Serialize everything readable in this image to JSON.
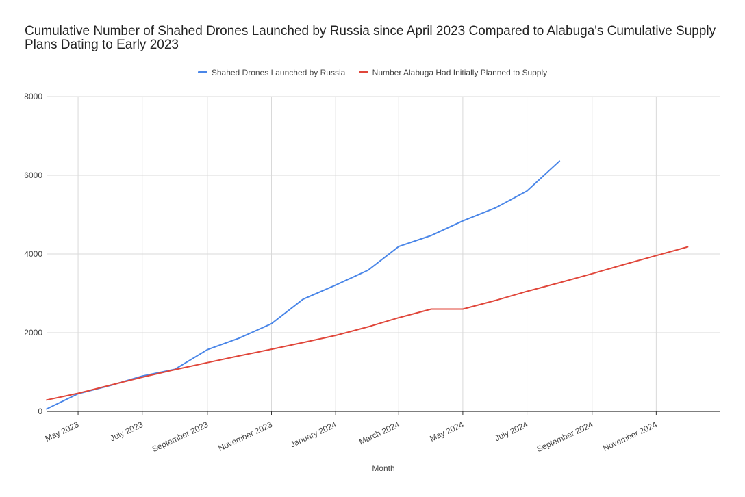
{
  "chart_data": {
    "type": "line",
    "title": "Cumulative Number of Shahed Drones Launched by Russia since April 2023 Compared to Alabuga's Cumulative Supply Plans Dating to Early 2023",
    "xlabel": "Month",
    "ylabel": "",
    "ylim": [
      0,
      8000
    ],
    "yticks": [
      0,
      2000,
      4000,
      6000,
      8000
    ],
    "xlim": [
      "2023-04-01",
      "2025-01-01"
    ],
    "xticks": [
      {
        "date": "2023-05-01",
        "label": "May 2023"
      },
      {
        "date": "2023-07-01",
        "label": "July 2023"
      },
      {
        "date": "2023-09-01",
        "label": "September 2023"
      },
      {
        "date": "2023-11-01",
        "label": "November 2023"
      },
      {
        "date": "2024-01-01",
        "label": "January 2024"
      },
      {
        "date": "2024-03-01",
        "label": "March 2024"
      },
      {
        "date": "2024-05-01",
        "label": "May 2024"
      },
      {
        "date": "2024-07-01",
        "label": "July 2024"
      },
      {
        "date": "2024-09-01",
        "label": "September 2024"
      },
      {
        "date": "2024-11-01",
        "label": "November 2024"
      }
    ],
    "grid": true,
    "legend_position": "top",
    "series": [
      {
        "name": "Shahed Drones Launched by Russia",
        "color": "#4a86e8",
        "points": [
          {
            "x": "2023-04-01",
            "y": 60
          },
          {
            "x": "2023-05-01",
            "y": 450
          },
          {
            "x": "2023-06-01",
            "y": 660
          },
          {
            "x": "2023-07-01",
            "y": 900
          },
          {
            "x": "2023-08-01",
            "y": 1070
          },
          {
            "x": "2023-09-01",
            "y": 1570
          },
          {
            "x": "2023-10-01",
            "y": 1860
          },
          {
            "x": "2023-11-01",
            "y": 2230
          },
          {
            "x": "2023-12-01",
            "y": 2850
          },
          {
            "x": "2024-01-01",
            "y": 3210
          },
          {
            "x": "2024-02-01",
            "y": 3590
          },
          {
            "x": "2024-03-01",
            "y": 4190
          },
          {
            "x": "2024-04-01",
            "y": 4470
          },
          {
            "x": "2024-05-01",
            "y": 4840
          },
          {
            "x": "2024-06-01",
            "y": 5170
          },
          {
            "x": "2024-07-01",
            "y": 5600
          },
          {
            "x": "2024-08-01",
            "y": 6360
          }
        ]
      },
      {
        "name": "Number Alabuga Had Initially Planned to Supply",
        "color": "#e0463a",
        "points": [
          {
            "x": "2023-04-01",
            "y": 290
          },
          {
            "x": "2023-05-01",
            "y": 460
          },
          {
            "x": "2023-06-01",
            "y": 670
          },
          {
            "x": "2023-07-01",
            "y": 870
          },
          {
            "x": "2023-08-01",
            "y": 1060
          },
          {
            "x": "2023-09-01",
            "y": 1240
          },
          {
            "x": "2023-10-01",
            "y": 1410
          },
          {
            "x": "2023-11-01",
            "y": 1580
          },
          {
            "x": "2023-12-01",
            "y": 1750
          },
          {
            "x": "2024-01-01",
            "y": 1930
          },
          {
            "x": "2024-02-01",
            "y": 2150
          },
          {
            "x": "2024-03-01",
            "y": 2380
          },
          {
            "x": "2024-04-01",
            "y": 2600
          },
          {
            "x": "2024-05-01",
            "y": 2600
          },
          {
            "x": "2024-06-01",
            "y": 2820
          },
          {
            "x": "2024-07-01",
            "y": 3050
          },
          {
            "x": "2024-08-01",
            "y": 3270
          },
          {
            "x": "2024-09-01",
            "y": 3500
          },
          {
            "x": "2024-10-01",
            "y": 3730
          },
          {
            "x": "2024-11-01",
            "y": 3960
          },
          {
            "x": "2024-12-01",
            "y": 4180
          }
        ]
      }
    ]
  }
}
